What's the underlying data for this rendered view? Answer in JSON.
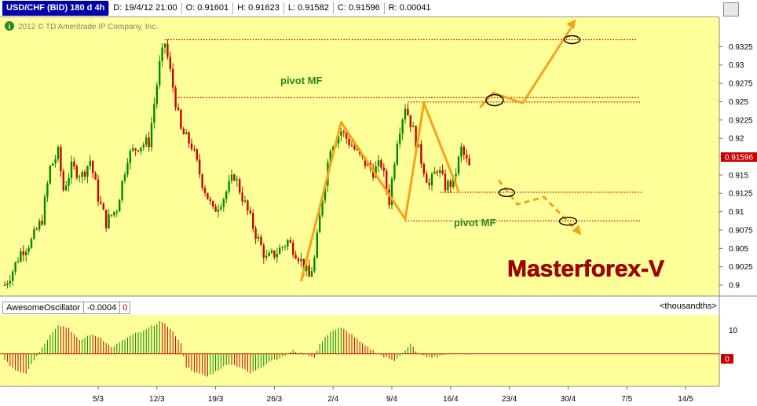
{
  "header": {
    "symbol": "USD/CHF (BID) 180 d 4h",
    "date": "D: 19/4/12 21:00",
    "open": "O: 0.91601",
    "high": "H: 0.91623",
    "low": "L: 0.91582",
    "close": "C: 0.91596",
    "range": "R: 0.00041"
  },
  "copyright": "2012 © TD Ameritrade IP Company, Inc.",
  "annotations": {
    "pivot_top": "pivot MF",
    "pivot_bottom": "pivot MF",
    "watermark": "Masterforex-V"
  },
  "colors": {
    "background": "#ffff99",
    "up_candle": "#008800",
    "down_candle": "#cc0000",
    "pivot_line": "#cc0000",
    "zigzag": "#f7a21b",
    "pivot_text": "#228b22",
    "watermark": "#aa0000"
  },
  "chart_data": [
    {
      "type": "candlestick",
      "title": "USD/CHF (BID) 180 d 4h",
      "y_ticks": [
        "0.9",
        "0.9025",
        "0.905",
        "0.9075",
        "0.91",
        "0.9125",
        "0.915",
        "0.9175",
        "0.92",
        "0.9225",
        "0.925",
        "0.9275",
        "0.93",
        "0.9325"
      ],
      "x_ticks": [
        "5/3",
        "12/3",
        "19/3",
        "26/3",
        "2/4",
        "9/4",
        "16/4",
        "23/4",
        "30/4",
        "7/5",
        "14/5"
      ],
      "ylim": [
        0.8985,
        0.9365
      ],
      "last_price": "0.91596",
      "path": [
        [
          0,
          0.9
        ],
        [
          3,
          0.902
        ],
        [
          6,
          0.9045
        ],
        [
          10,
          0.906
        ],
        [
          14,
          0.909
        ],
        [
          17,
          0.916
        ],
        [
          20,
          0.918
        ],
        [
          22,
          0.913
        ],
        [
          25,
          0.916
        ],
        [
          29,
          0.915
        ],
        [
          32,
          0.917
        ],
        [
          35,
          0.912
        ],
        [
          38,
          0.9085
        ],
        [
          42,
          0.9105
        ],
        [
          46,
          0.9175
        ],
        [
          50,
          0.919
        ],
        [
          54,
          0.9195
        ],
        [
          58,
          0.93
        ],
        [
          60,
          0.933
        ],
        [
          63,
          0.927
        ],
        [
          66,
          0.921
        ],
        [
          70,
          0.919
        ],
        [
          74,
          0.914
        ],
        [
          78,
          0.91
        ],
        [
          82,
          0.912
        ],
        [
          86,
          0.915
        ],
        [
          90,
          0.911
        ],
        [
          94,
          0.907
        ],
        [
          98,
          0.9035
        ],
        [
          102,
          0.9045
        ],
        [
          106,
          0.906
        ],
        [
          110,
          0.904
        ],
        [
          114,
          0.901
        ],
        [
          116,
          0.9035
        ],
        [
          119,
          0.912
        ],
        [
          122,
          0.919
        ],
        [
          126,
          0.921
        ],
        [
          130,
          0.919
        ],
        [
          134,
          0.917
        ],
        [
          138,
          0.9155
        ],
        [
          141,
          0.9165
        ],
        [
          144,
          0.9115
        ],
        [
          147,
          0.92
        ],
        [
          150,
          0.9245
        ],
        [
          153,
          0.921
        ],
        [
          156,
          0.917
        ],
        [
          159,
          0.9135
        ],
        [
          162,
          0.916
        ],
        [
          165,
          0.9135
        ],
        [
          168,
          0.914
        ],
        [
          171,
          0.9185
        ],
        [
          174,
          0.916
        ]
      ]
    },
    {
      "type": "bar",
      "title": "AwesomeOscillator",
      "value": "-0.0004",
      "units": "<thousandths>",
      "y_ticks": [
        "10",
        "0"
      ],
      "ylim": [
        -10,
        12
      ],
      "path": [
        [
          0,
          -2
        ],
        [
          4,
          -5
        ],
        [
          8,
          -6
        ],
        [
          10,
          -3
        ],
        [
          14,
          2
        ],
        [
          18,
          7
        ],
        [
          20,
          9
        ],
        [
          24,
          8
        ],
        [
          28,
          4
        ],
        [
          32,
          6
        ],
        [
          36,
          5
        ],
        [
          40,
          2
        ],
        [
          44,
          4
        ],
        [
          48,
          6
        ],
        [
          52,
          7
        ],
        [
          56,
          9
        ],
        [
          58,
          10
        ],
        [
          62,
          8
        ],
        [
          66,
          3
        ],
        [
          68,
          -4
        ],
        [
          72,
          -6
        ],
        [
          76,
          -7
        ],
        [
          80,
          -5
        ],
        [
          84,
          -3
        ],
        [
          88,
          -4
        ],
        [
          92,
          -6
        ],
        [
          96,
          -4
        ],
        [
          100,
          -2
        ],
        [
          104,
          -1
        ],
        [
          108,
          1
        ],
        [
          112,
          0
        ],
        [
          116,
          -1
        ],
        [
          118,
          3
        ],
        [
          122,
          7
        ],
        [
          126,
          8
        ],
        [
          130,
          6
        ],
        [
          134,
          3
        ],
        [
          138,
          1
        ],
        [
          142,
          -1
        ],
        [
          146,
          -2
        ],
        [
          150,
          1
        ],
        [
          152,
          3
        ],
        [
          155,
          0
        ],
        [
          158,
          -1
        ],
        [
          162,
          -1
        ],
        [
          165,
          0
        ],
        [
          168,
          0
        ],
        [
          171,
          0
        ],
        [
          174,
          0
        ]
      ]
    }
  ]
}
